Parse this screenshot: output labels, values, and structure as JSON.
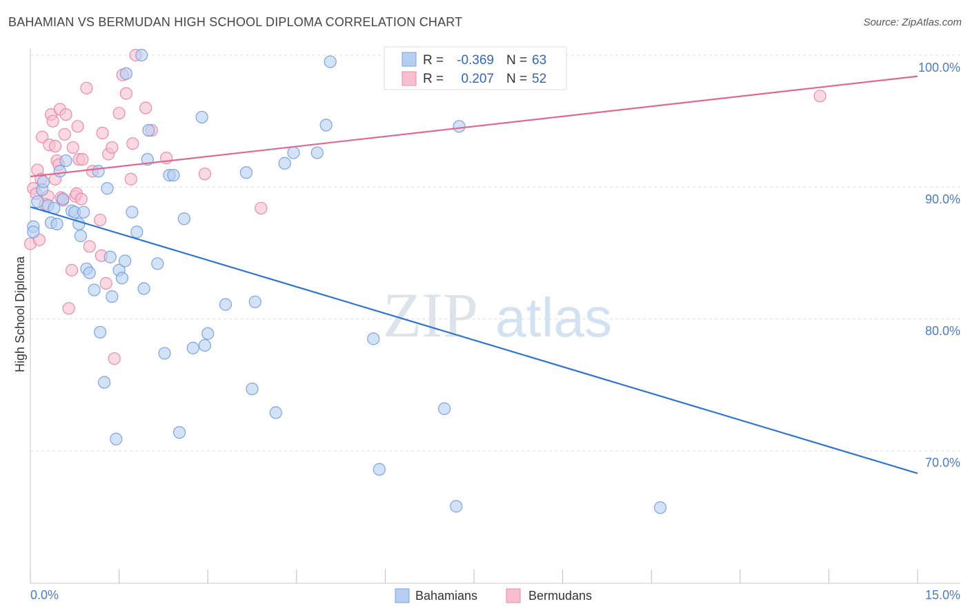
{
  "title": "BAHAMIAN VS BERMUDAN HIGH SCHOOL DIPLOMA CORRELATION CHART",
  "source": "Source: ZipAtlas.com",
  "watermark": {
    "zip": "ZIP",
    "atlas": "atlas"
  },
  "colors": {
    "blue_fill": "#b5cef2",
    "blue_stroke": "#7aa3e0",
    "blue_line": "#2f73d0",
    "pink_fill": "#f7bfd0",
    "pink_stroke": "#ea8aaa",
    "pink_line": "#e0688f",
    "tick_text": "#4a7cc0",
    "grid": "#dddddd"
  },
  "legend": {
    "rows": [
      {
        "r_label": "R =",
        "r_value": "-0.369",
        "n_label": "N =",
        "n_value": "63"
      },
      {
        "r_label": "R =",
        "r_value": "0.207",
        "n_label": "N =",
        "n_value": "52"
      }
    ]
  },
  "chart_data": {
    "type": "scatter",
    "title": "BAHAMIAN VS BERMUDAN HIGH SCHOOL DIPLOMA CORRELATION CHART",
    "xlabel": "",
    "ylabel": "High School Diploma",
    "xlim": [
      0,
      15
    ],
    "ylim": [
      61.5,
      101.5
    ],
    "x_tick_labels": [
      {
        "value": 0,
        "label": "0.0%"
      },
      {
        "value": 15,
        "label": "15.0%"
      }
    ],
    "y_tick_labels": [
      {
        "value": 100,
        "label": "100.0%"
      },
      {
        "value": 90,
        "label": "90.0%"
      },
      {
        "value": 80,
        "label": "80.0%"
      },
      {
        "value": 70,
        "label": "70.0%"
      }
    ],
    "grid": true,
    "legend_position": "top-center",
    "series": [
      {
        "name": "Bahamians",
        "color": "#b5cef2",
        "r": -0.369,
        "n": 63,
        "trend": {
          "x": [
            0,
            15
          ],
          "y": [
            88.5,
            68.3
          ]
        },
        "points": [
          [
            0.05,
            87.0
          ],
          [
            0.05,
            86.6
          ],
          [
            0.12,
            88.9
          ],
          [
            0.2,
            89.8
          ],
          [
            0.22,
            90.4
          ],
          [
            0.3,
            88.6
          ],
          [
            0.35,
            87.3
          ],
          [
            0.4,
            88.4
          ],
          [
            0.45,
            87.2
          ],
          [
            0.5,
            91.2
          ],
          [
            0.55,
            89.1
          ],
          [
            0.6,
            92.0
          ],
          [
            0.7,
            88.2
          ],
          [
            0.75,
            88.1
          ],
          [
            0.82,
            87.2
          ],
          [
            0.85,
            86.3
          ],
          [
            0.9,
            88.1
          ],
          [
            0.95,
            83.8
          ],
          [
            1.0,
            83.5
          ],
          [
            1.08,
            82.2
          ],
          [
            1.15,
            91.2
          ],
          [
            1.18,
            79.0
          ],
          [
            1.25,
            75.2
          ],
          [
            1.3,
            89.9
          ],
          [
            1.35,
            84.7
          ],
          [
            1.38,
            81.7
          ],
          [
            1.45,
            70.9
          ],
          [
            1.5,
            83.7
          ],
          [
            1.55,
            83.1
          ],
          [
            1.6,
            84.4
          ],
          [
            1.62,
            98.6
          ],
          [
            1.72,
            88.1
          ],
          [
            1.8,
            86.6
          ],
          [
            1.88,
            100.0
          ],
          [
            1.92,
            82.3
          ],
          [
            1.98,
            92.1
          ],
          [
            2.0,
            94.3
          ],
          [
            2.15,
            84.2
          ],
          [
            2.27,
            77.4
          ],
          [
            2.35,
            90.9
          ],
          [
            2.42,
            90.9
          ],
          [
            2.52,
            71.4
          ],
          [
            2.6,
            87.6
          ],
          [
            2.75,
            77.8
          ],
          [
            2.9,
            95.3
          ],
          [
            2.95,
            78.0
          ],
          [
            3.0,
            78.9
          ],
          [
            3.3,
            81.1
          ],
          [
            3.65,
            91.1
          ],
          [
            3.75,
            74.7
          ],
          [
            3.8,
            81.3
          ],
          [
            4.15,
            72.9
          ],
          [
            4.3,
            91.8
          ],
          [
            4.45,
            92.6
          ],
          [
            4.85,
            92.6
          ],
          [
            5.0,
            94.7
          ],
          [
            5.07,
            99.5
          ],
          [
            5.8,
            78.5
          ],
          [
            5.9,
            68.6
          ],
          [
            7.0,
            73.2
          ],
          [
            7.2,
            65.8
          ],
          [
            7.25,
            94.6
          ],
          [
            10.65,
            65.7
          ]
        ]
      },
      {
        "name": "Bermudans",
        "color": "#f7bfd0",
        "r": 0.207,
        "n": 52,
        "trend": {
          "x": [
            0,
            15
          ],
          "y": [
            90.8,
            98.4
          ]
        },
        "points": [
          [
            0.0,
            85.7
          ],
          [
            0.05,
            89.9
          ],
          [
            0.12,
            91.3
          ],
          [
            0.15,
            86.0
          ],
          [
            0.18,
            90.6
          ],
          [
            0.2,
            93.8
          ],
          [
            0.3,
            89.3
          ],
          [
            0.32,
            93.2
          ],
          [
            0.35,
            95.5
          ],
          [
            0.38,
            95.0
          ],
          [
            0.42,
            93.1
          ],
          [
            0.45,
            92.0
          ],
          [
            0.48,
            91.7
          ],
          [
            0.5,
            95.9
          ],
          [
            0.52,
            89.2
          ],
          [
            0.55,
            89.0
          ],
          [
            0.58,
            94.0
          ],
          [
            0.6,
            95.5
          ],
          [
            0.65,
            80.8
          ],
          [
            0.7,
            83.7
          ],
          [
            0.72,
            93.0
          ],
          [
            0.76,
            89.3
          ],
          [
            0.78,
            89.5
          ],
          [
            0.8,
            94.6
          ],
          [
            0.82,
            92.1
          ],
          [
            0.86,
            89.1
          ],
          [
            0.88,
            92.1
          ],
          [
            0.95,
            97.5
          ],
          [
            1.0,
            85.5
          ],
          [
            1.05,
            91.2
          ],
          [
            1.18,
            87.5
          ],
          [
            1.2,
            84.8
          ],
          [
            1.22,
            94.1
          ],
          [
            1.28,
            82.7
          ],
          [
            1.32,
            92.5
          ],
          [
            1.38,
            93.0
          ],
          [
            1.42,
            77.0
          ],
          [
            1.5,
            95.6
          ],
          [
            1.56,
            98.5
          ],
          [
            1.62,
            97.1
          ],
          [
            1.7,
            90.6
          ],
          [
            1.73,
            93.3
          ],
          [
            1.78,
            100.0
          ],
          [
            1.95,
            96.0
          ],
          [
            2.05,
            94.3
          ],
          [
            2.3,
            92.2
          ],
          [
            2.95,
            91.0
          ],
          [
            3.9,
            88.4
          ],
          [
            13.35,
            96.9
          ],
          [
            0.1,
            89.5
          ],
          [
            0.25,
            88.7
          ],
          [
            0.42,
            90.6
          ]
        ]
      }
    ]
  }
}
